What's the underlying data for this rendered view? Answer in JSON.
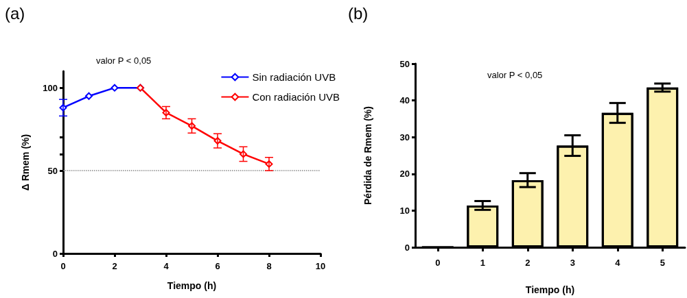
{
  "chart_data": [
    {
      "type": "line",
      "title": "(a)",
      "xlabel": "Tiempo (h)",
      "ylabel": "Δ Rmem (%)",
      "annotations": [
        "valor P < 0,05"
      ],
      "xlim": [
        0,
        10
      ],
      "xticks": [
        0,
        2,
        4,
        6,
        8,
        10
      ],
      "ylim": [
        0,
        110
      ],
      "yticks": [
        0,
        50,
        {
          "value": 60,
          "label": null
        },
        {
          "value": 70,
          "label": null
        },
        100
      ],
      "series": [
        {
          "name": "Sin radiación UVB",
          "color": "#0000ff",
          "x": [
            0,
            1,
            2,
            3
          ],
          "values": [
            88,
            95,
            100,
            100
          ],
          "errors": [
            5,
            null,
            null,
            null
          ]
        },
        {
          "name": "Con radiación UVB",
          "color": "#ff0000",
          "x": [
            3,
            4,
            5,
            6,
            7,
            8
          ],
          "values": [
            100,
            85,
            77,
            68,
            60,
            54
          ],
          "errors": [
            null,
            3.7,
            4.3,
            4.3,
            4.4,
            4
          ]
        }
      ],
      "ref_lines": [
        {
          "axis": "y",
          "value": 50,
          "color": "#888888",
          "line_style": "dotted"
        }
      ],
      "marker": "diamond",
      "legend": "top right",
      "grid": false
    },
    {
      "type": "bar",
      "title": "(b)",
      "xlabel": "Tiempo (h)",
      "ylabel": "Pérdida de Rmem (%)",
      "annotations": [
        "valor P < 0,05"
      ],
      "categories": [
        "0",
        "1",
        "2",
        "3",
        "4",
        "5"
      ],
      "values": [
        0,
        11.4,
        18.3,
        27.7,
        36.6,
        43.5
      ],
      "errors": [
        null,
        1.2,
        1.9,
        2.8,
        2.7,
        1.1
      ],
      "color": "#fdf1ae",
      "ylim": [
        0,
        50
      ],
      "yticks": [
        0,
        10,
        20,
        30,
        40,
        50
      ],
      "grid": false
    }
  ]
}
